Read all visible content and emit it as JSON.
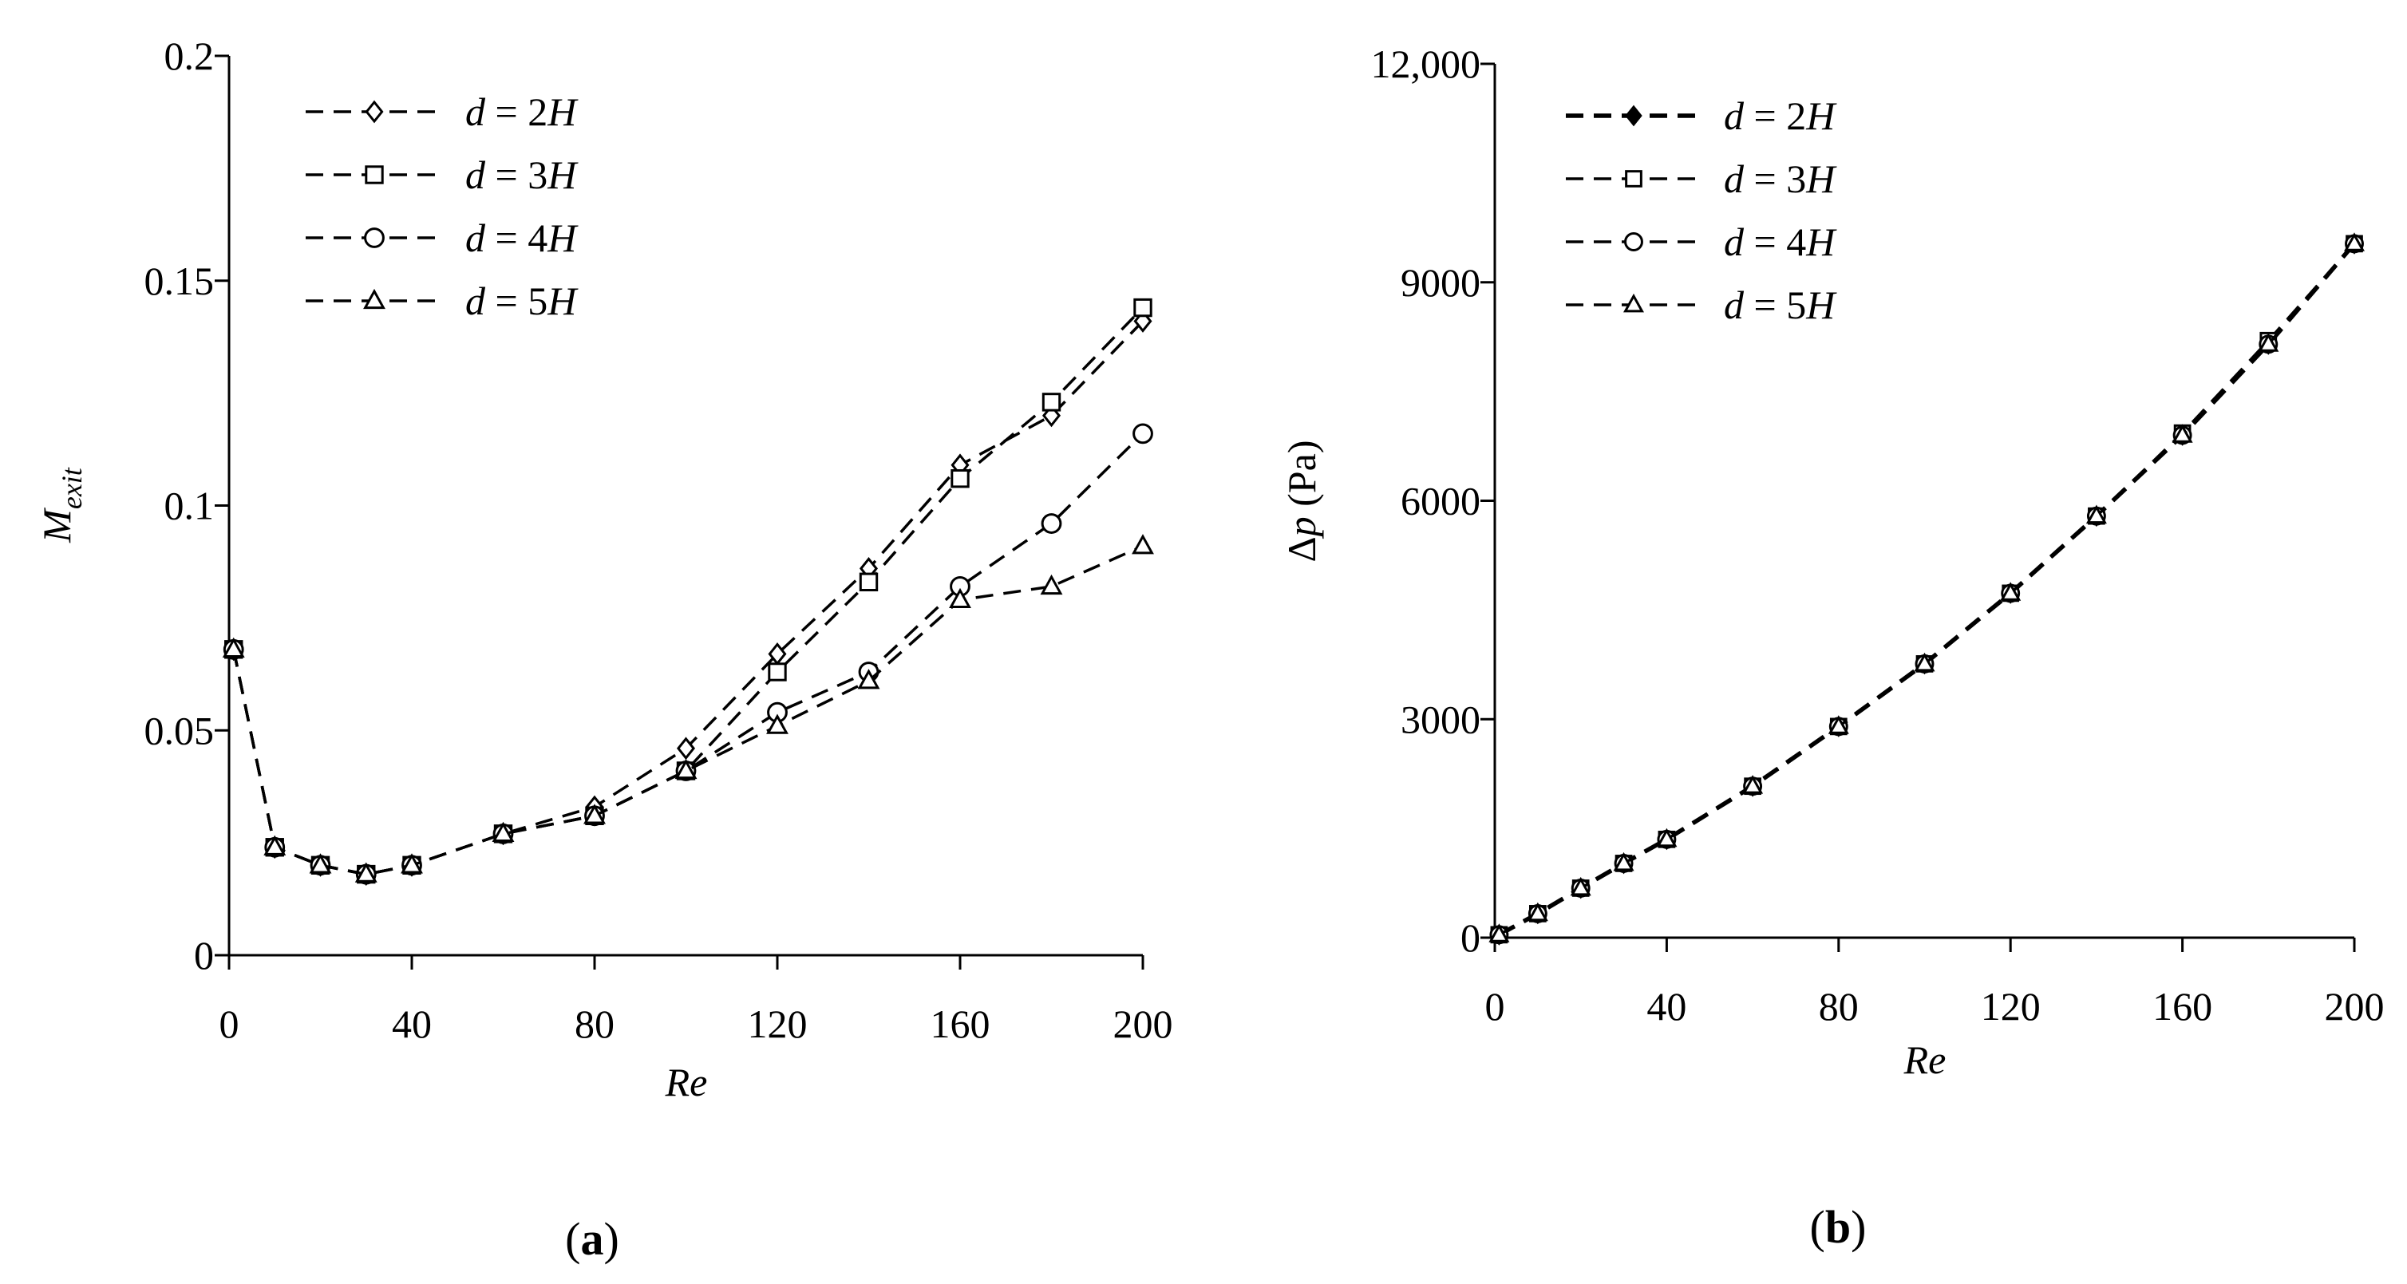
{
  "chart_data": [
    {
      "type": "line",
      "panel_label_open": "(",
      "panel_label": "a",
      "panel_label_close": ")",
      "title": "",
      "xlabel": "Re",
      "ylabel_main": "M",
      "ylabel_sub": "exit",
      "xlim": [
        0,
        200
      ],
      "ylim": [
        0,
        0.2
      ],
      "xticks": [
        0,
        40,
        80,
        120,
        160,
        200
      ],
      "xtick_labels": [
        "0",
        "40",
        "80",
        "120",
        "160",
        "200"
      ],
      "yticks": [
        0,
        0.05,
        0.1,
        0.15,
        0.2
      ],
      "ytick_labels": [
        "0",
        "0.05",
        "0.1",
        "0.15",
        "0.2"
      ],
      "legend_position": "top-left",
      "x": [
        1,
        10,
        20,
        30,
        40,
        60,
        80,
        100,
        120,
        140,
        160,
        180,
        200
      ],
      "series": [
        {
          "name": "d = 2H",
          "marker": "diamond",
          "values": [
            0.068,
            0.024,
            0.02,
            0.018,
            0.02,
            0.027,
            0.033,
            0.046,
            0.067,
            0.086,
            0.109,
            0.12,
            0.141
          ]
        },
        {
          "name": "d = 3H",
          "marker": "square",
          "values": [
            0.068,
            0.024,
            0.02,
            0.018,
            0.02,
            0.027,
            0.031,
            0.041,
            0.063,
            0.083,
            0.106,
            0.123,
            0.144
          ]
        },
        {
          "name": "d = 4H",
          "marker": "circle",
          "values": [
            0.068,
            0.024,
            0.02,
            0.018,
            0.02,
            0.027,
            0.031,
            0.041,
            0.054,
            0.063,
            0.082,
            0.096,
            0.116
          ]
        },
        {
          "name": "d = 5H",
          "marker": "triangle",
          "values": [
            0.068,
            0.024,
            0.02,
            0.018,
            0.02,
            0.027,
            0.031,
            0.041,
            0.051,
            0.061,
            0.079,
            0.082,
            0.091
          ]
        }
      ]
    },
    {
      "type": "line",
      "panel_label_open": "(",
      "panel_label": "b",
      "panel_label_close": ")",
      "title": "",
      "xlabel": "Re",
      "ylabel_delta": "Δ",
      "ylabel_p": "p",
      "ylabel_unit": " (Pa)",
      "xlim": [
        0,
        200
      ],
      "ylim": [
        0,
        12000
      ],
      "xticks": [
        0,
        40,
        80,
        120,
        160,
        200
      ],
      "xtick_labels": [
        "0",
        "40",
        "80",
        "120",
        "160",
        "200"
      ],
      "yticks": [
        0,
        3000,
        6000,
        9000,
        12000
      ],
      "ytick_labels": [
        "0",
        "3000",
        "6000",
        "9000",
        "12,000"
      ],
      "legend_position": "top-left",
      "x": [
        1,
        10,
        20,
        30,
        40,
        60,
        80,
        100,
        120,
        140,
        160,
        180,
        200
      ],
      "series": [
        {
          "name": "d = 2H",
          "marker": "diamond-filled",
          "values": [
            40,
            330,
            680,
            1020,
            1350,
            2080,
            2900,
            3760,
            4730,
            5790,
            6900,
            8150,
            9530
          ]
        },
        {
          "name": "d = 3H",
          "marker": "square",
          "values": [
            40,
            330,
            680,
            1020,
            1350,
            2080,
            2900,
            3760,
            4730,
            5790,
            6930,
            8200,
            9530
          ]
        },
        {
          "name": "d = 4H",
          "marker": "circle",
          "values": [
            40,
            330,
            680,
            1020,
            1350,
            2080,
            2900,
            3760,
            4730,
            5790,
            6900,
            8150,
            9530
          ]
        },
        {
          "name": "d = 5H",
          "marker": "triangle",
          "values": [
            40,
            330,
            680,
            1020,
            1350,
            2080,
            2900,
            3760,
            4730,
            5790,
            6900,
            8150,
            9530
          ]
        }
      ]
    }
  ]
}
